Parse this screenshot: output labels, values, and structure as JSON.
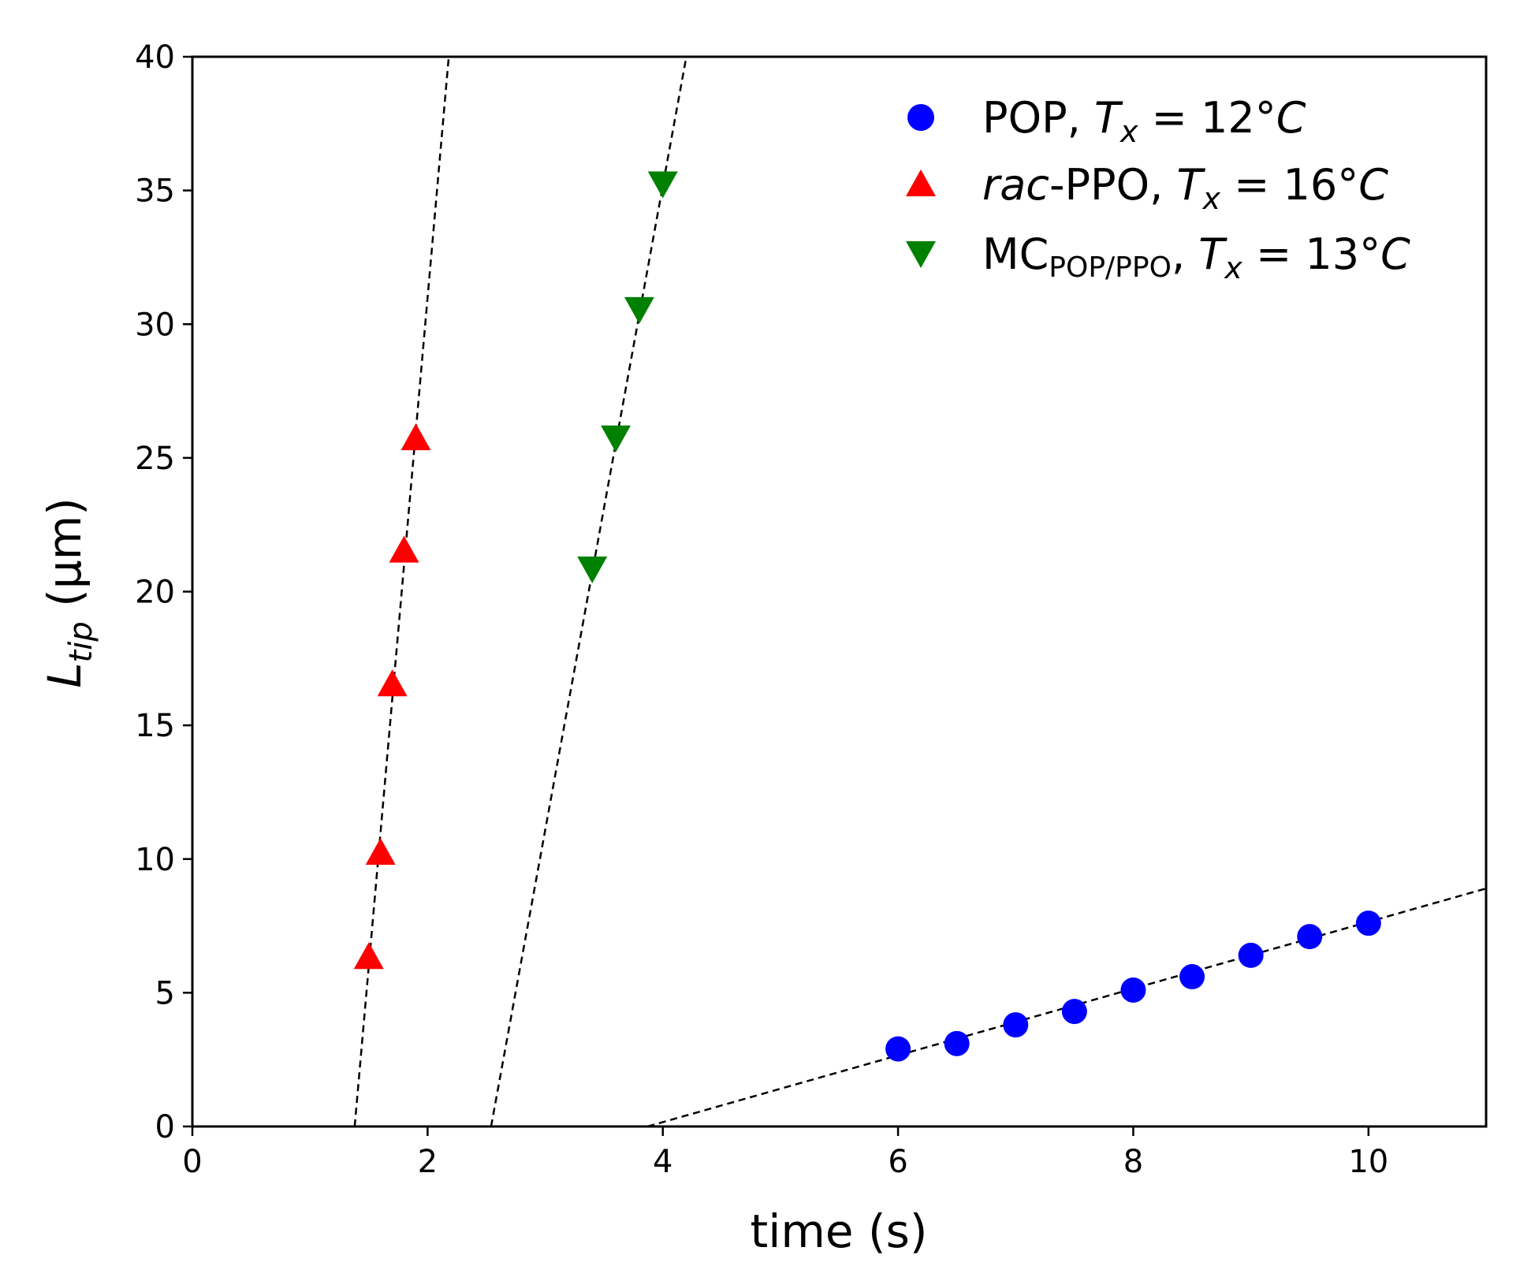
{
  "chart_data": {
    "type": "scatter",
    "title": "",
    "xlabel": "time (s)",
    "ylabel": {
      "main": "L",
      "sub": "tip",
      "unit": " (μm)"
    },
    "xlim": [
      0,
      11
    ],
    "ylim": [
      0,
      40
    ],
    "xticks": [
      0,
      2,
      4,
      6,
      8,
      10
    ],
    "yticks": [
      0,
      5,
      10,
      15,
      20,
      25,
      30,
      35,
      40
    ],
    "grid": false,
    "legend_position": "top-right",
    "series": [
      {
        "key": "pop",
        "marker": "circle",
        "color": "#0000ff",
        "legend": {
          "name": "POP",
          "sep": ", ",
          "var": "T",
          "var_sub": "x",
          "eq": " = 12°",
          "unit": "C"
        },
        "x": [
          6.0,
          6.5,
          7.0,
          7.5,
          8.0,
          8.5,
          9.0,
          9.5,
          10.0
        ],
        "y": [
          2.9,
          3.1,
          3.8,
          4.3,
          5.1,
          5.6,
          6.4,
          7.1,
          7.6
        ],
        "fit": {
          "x0": 3.87,
          "y0": 0.0,
          "x1": 11.0,
          "y1": 8.9
        }
      },
      {
        "key": "rac_ppo",
        "marker": "triangle-up",
        "color": "#ff0000",
        "legend": {
          "name_it": "rac",
          "name": "-PPO",
          "sep": ", ",
          "var": "T",
          "var_sub": "x",
          "eq": " = 16°",
          "unit": "C"
        },
        "x": [
          1.5,
          1.6,
          1.7,
          1.8,
          1.9
        ],
        "y": [
          6.3,
          10.2,
          16.5,
          21.5,
          25.7
        ],
        "fit": {
          "x0": 1.38,
          "y0": 0.0,
          "x1": 2.18,
          "y1": 40.0
        }
      },
      {
        "key": "mc_pop_ppo",
        "marker": "triangle-down",
        "color": "#008000",
        "legend": {
          "name": "MC",
          "name_sub": "POP/PPO",
          "sep": ", ",
          "var": "T",
          "var_sub": "x",
          "eq": " = 13°",
          "unit": "C"
        },
        "x": [
          3.4,
          3.6,
          3.8,
          4.0
        ],
        "y": [
          20.9,
          25.8,
          30.6,
          35.3
        ],
        "fit": {
          "x0": 2.54,
          "y0": 0.0,
          "x1": 4.2,
          "y1": 40.0
        }
      }
    ]
  }
}
